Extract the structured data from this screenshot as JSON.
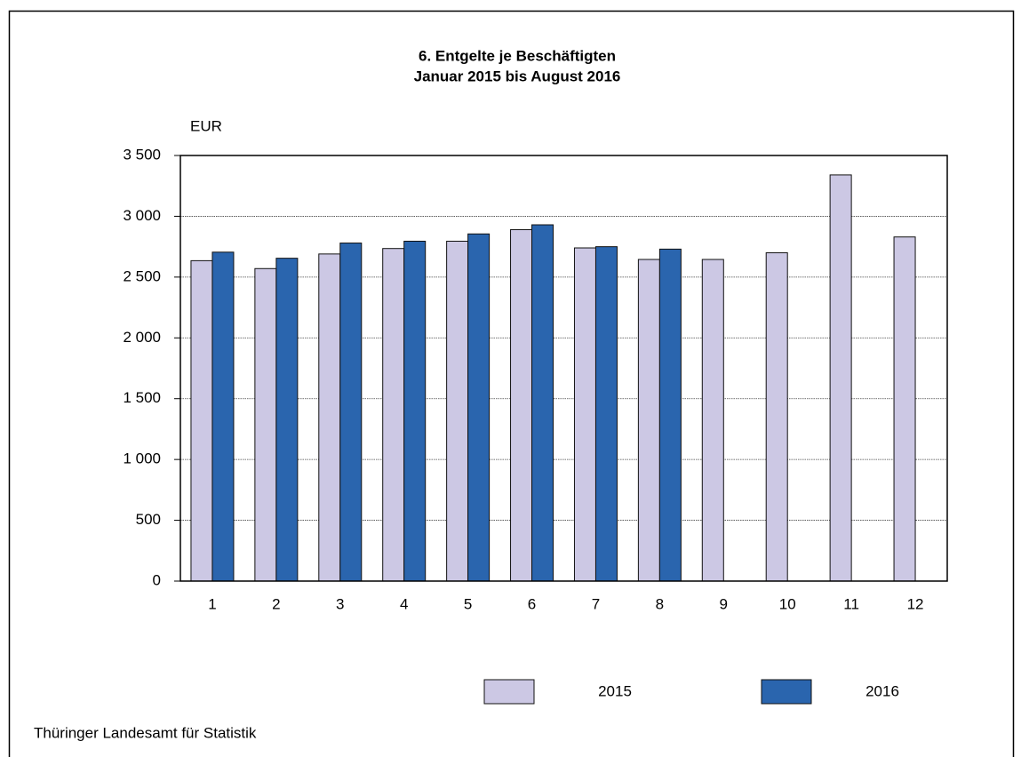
{
  "chart_data": {
    "type": "bar",
    "title": "6. Entgelte je Beschäftigten",
    "subtitle": "Januar 2015 bis August 2016",
    "y_label": "EUR",
    "source": "Thüringer Landesamt für Statistik",
    "categories": [
      "1",
      "2",
      "3",
      "4",
      "5",
      "6",
      "7",
      "8",
      "9",
      "10",
      "11",
      "12"
    ],
    "series": [
      {
        "name": "2015",
        "color": "#ccc8e4",
        "values": [
          2635,
          2570,
          2690,
          2735,
          2795,
          2890,
          2740,
          2645,
          2645,
          2700,
          3340,
          2830
        ]
      },
      {
        "name": "2016",
        "color": "#2a65ae",
        "values": [
          2705,
          2655,
          2780,
          2795,
          2855,
          2930,
          2750,
          2730,
          null,
          null,
          null,
          null
        ]
      }
    ],
    "ylim": [
      0,
      3500
    ],
    "yticks": [
      0,
      500,
      {
        "value": 1000,
        "label": "1 000"
      },
      {
        "value": 1500,
        "label": "1 500"
      },
      {
        "value": 2000,
        "label": "2 000"
      },
      {
        "value": 2500,
        "label": "2 500"
      },
      {
        "value": 3000,
        "label": "3 000"
      },
      {
        "value": 3500,
        "label": "3 500"
      }
    ],
    "grid": true,
    "legend": "bottom"
  }
}
